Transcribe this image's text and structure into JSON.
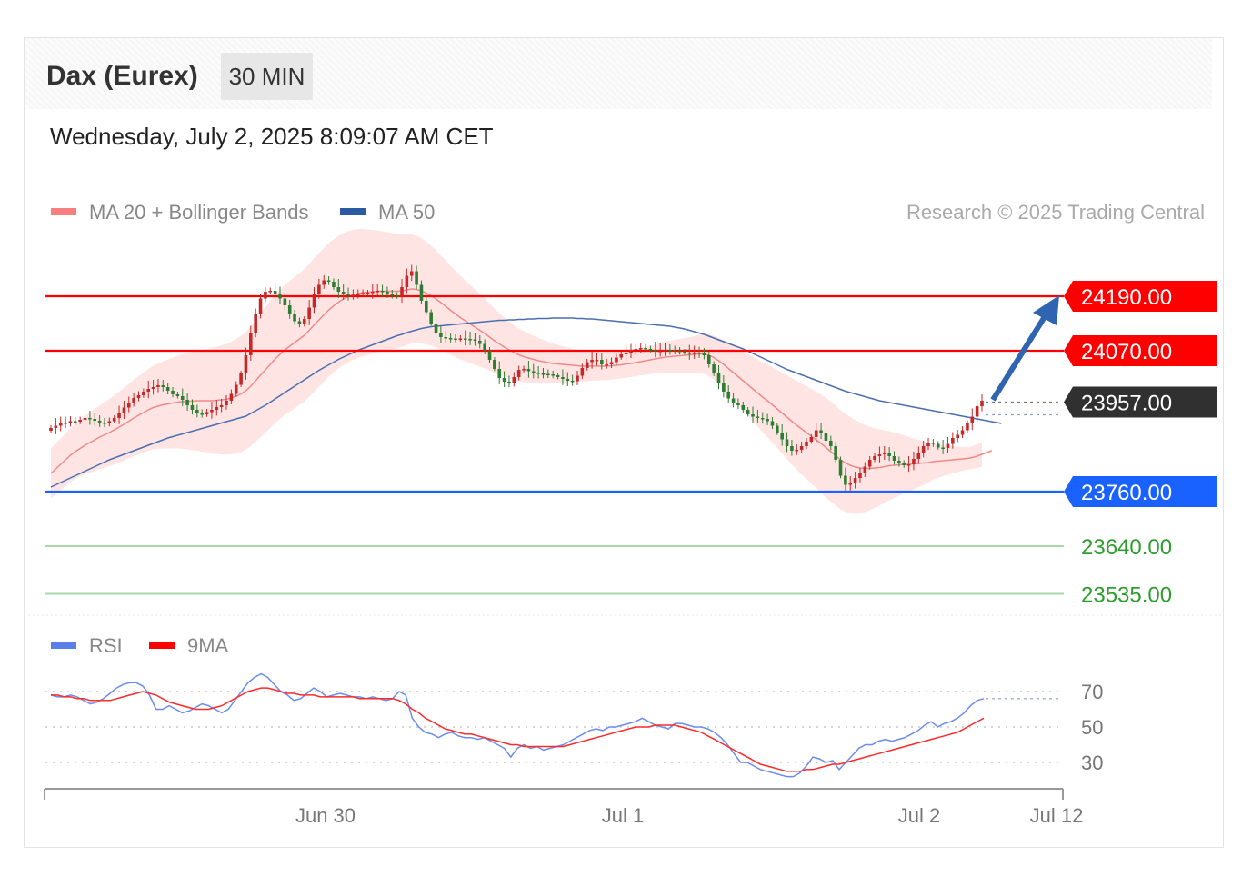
{
  "header": {
    "instrument": "Dax (Eurex)",
    "interval": "30 MIN",
    "timestamp": "Wednesday, July 2, 2025 8:09:07 AM CET"
  },
  "copyright": "Research © 2025 Trading Central",
  "colors": {
    "resistance": "#ff0000",
    "support": "#1a62ff",
    "pivot": "#303030",
    "target": "#a9d8a9",
    "target_text": "#2e9e2e",
    "bull_candle": "#c62828",
    "bear_candle": "#2e7d32",
    "bollinger_fill": "#ffe1e1",
    "ma20": "#f08a8a",
    "ma50": "#4a6fb0",
    "rsi": "#6a8cf0",
    "rsi_ma": "#ff2a2a",
    "arrow": "#2f64b0"
  },
  "chart_data": [
    {
      "type": "candlestick",
      "legend": [
        {
          "name": "MA 20 + Bollinger Bands",
          "color": "#f77f7f"
        },
        {
          "name": "MA 50",
          "color": "#2c5aa0"
        }
      ],
      "levels": [
        {
          "label": "24190.00",
          "value": 24190,
          "kind": "resistance"
        },
        {
          "label": "24070.00",
          "value": 24070,
          "kind": "resistance"
        },
        {
          "label": "23957.00",
          "value": 23957,
          "kind": "last"
        },
        {
          "label": "23760.00",
          "value": 23760,
          "kind": "support"
        },
        {
          "label": "23640.00",
          "value": 23640,
          "kind": "target"
        },
        {
          "label": "23535.00",
          "value": 23535,
          "kind": "target"
        }
      ],
      "x_ticks": [
        "Jun 30",
        "Jul 1",
        "Jul 2",
        "Jul 12"
      ],
      "close": [
        23900,
        23905,
        23910,
        23912,
        23915,
        23914,
        23918,
        23922,
        23920,
        23916,
        23912,
        23910,
        23915,
        23922,
        23932,
        23945,
        23956,
        23966,
        23972,
        23980,
        23986,
        23990,
        23994,
        23990,
        23982,
        23974,
        23970,
        23962,
        23950,
        23940,
        23932,
        23930,
        23935,
        23940,
        23946,
        23950,
        23960,
        23975,
        23995,
        24020,
        24060,
        24110,
        24150,
        24185,
        24200,
        24202,
        24195,
        24185,
        24170,
        24150,
        24135,
        24128,
        24140,
        24165,
        24195,
        24215,
        24225,
        24222,
        24210,
        24200,
        24195,
        24192,
        24193,
        24195,
        24197,
        24198,
        24200,
        24202,
        24200,
        24195,
        24192,
        24190,
        24210,
        24235,
        24245,
        24215,
        24180,
        24155,
        24130,
        24110,
        24100,
        24098,
        24097,
        24096,
        24097,
        24096,
        24095,
        24092,
        24085,
        24070,
        24050,
        24030,
        24010,
        24002,
        24000,
        24012,
        24028,
        24030,
        24025,
        24022,
        24020,
        24019,
        24018,
        24016,
        24012,
        24008,
        24004,
        24003,
        24015,
        24032,
        24045,
        24050,
        24050,
        24040,
        24040,
        24045,
        24055,
        24062,
        24066,
        24070,
        24074,
        24076,
        24074,
        24072,
        24070,
        24070,
        24072,
        24071,
        24070,
        24068,
        24066,
        24064,
        24066,
        24065,
        24060,
        24040,
        24020,
        24000,
        23980,
        23965,
        23955,
        23950,
        23940,
        23930,
        23925,
        23922,
        23920,
        23915,
        23905,
        23890,
        23875,
        23860,
        23850,
        23852,
        23860,
        23870,
        23880,
        23895,
        23888,
        23872,
        23860,
        23830,
        23795,
        23775,
        23778,
        23790,
        23800,
        23815,
        23830,
        23838,
        23842,
        23845,
        23838,
        23828,
        23822,
        23818,
        23820,
        23832,
        23845,
        23860,
        23868,
        23865,
        23857,
        23856,
        23865,
        23878,
        23885,
        23895,
        23910,
        23925,
        23948,
        23960
      ],
      "ma20": [
        23800,
        23810,
        23820,
        23830,
        23840,
        23848,
        23855,
        23862,
        23868,
        23874,
        23880,
        23885,
        23890,
        23896,
        23902,
        23908,
        23915,
        23922,
        23928,
        23934,
        23940,
        23945,
        23948,
        23951,
        23953,
        23955,
        23957,
        23958,
        23959,
        23959,
        23960,
        23960,
        23960,
        23960,
        23961,
        23962,
        23963,
        23966,
        23970,
        23975,
        23982,
        23992,
        24004,
        24016,
        24028,
        24040,
        24052,
        24062,
        24072,
        24080,
        24088,
        24096,
        24104,
        24115,
        24127,
        24138,
        24149,
        24160,
        24169,
        24177,
        24184,
        24189,
        24193,
        24196,
        24198,
        24199,
        24200,
        24201,
        24201,
        24201,
        24201,
        24201,
        24202,
        24204,
        24206,
        24205,
        24202,
        24197,
        24191,
        24184,
        24176,
        24168,
        24159,
        24151,
        24143,
        24136,
        24129,
        24122,
        24115,
        24108,
        24100,
        24092,
        24085,
        24078,
        24072,
        24066,
        24061,
        24057,
        24054,
        24051,
        24048,
        24046,
        24044,
        24042,
        24041,
        24040,
        24039,
        24038,
        24037,
        24036,
        24036,
        24036,
        24036,
        24036,
        24036,
        24037,
        24038,
        24039,
        24041,
        24042,
        24044,
        24046,
        24048,
        24050,
        24052,
        24054,
        24056,
        24057,
        24058,
        24059,
        24060,
        24061,
        24062,
        24063,
        24063,
        24060,
        24055,
        24048,
        24040,
        24031,
        24022,
        24013,
        24004,
        23995,
        23986,
        23977,
        23968,
        23960,
        23951,
        23942,
        23933,
        23924,
        23915,
        23906,
        23898,
        23890,
        23882,
        23874,
        23866,
        23857,
        23848,
        23839,
        23830,
        23823,
        23818,
        23814,
        23812,
        23811,
        23811,
        23812,
        23813,
        23815,
        23817,
        23818,
        23819,
        23820,
        23820,
        23821,
        23822,
        23823,
        23824,
        23826,
        23827,
        23828,
        23829,
        23830,
        23831,
        23832,
        23833,
        23835,
        23838,
        23842,
        23846,
        23850
      ],
      "bb_width": [
        55,
        56,
        57,
        58,
        59,
        60,
        62,
        64,
        66,
        68,
        70,
        72,
        74,
        76,
        78,
        80,
        82,
        84,
        86,
        88,
        90,
        92,
        94,
        96,
        98,
        100,
        102,
        104,
        106,
        108,
        110,
        112,
        114,
        116,
        118,
        120,
        122,
        124,
        126,
        128,
        130,
        132,
        134,
        136,
        138,
        140,
        141,
        142,
        143,
        144,
        145,
        145,
        146,
        146,
        147,
        147,
        147,
        147,
        146,
        146,
        145,
        144,
        143,
        142,
        140,
        138,
        136,
        134,
        132,
        130,
        128,
        126,
        124,
        122,
        120,
        118,
        116,
        113,
        110,
        107,
        104,
        101,
        98,
        95,
        92,
        89,
        86,
        83,
        80,
        77,
        74,
        71,
        68,
        65,
        62,
        60,
        58,
        56,
        54,
        52,
        50,
        48,
        46,
        44,
        42,
        40,
        38,
        36,
        35,
        34,
        33,
        32,
        32,
        31,
        31,
        30,
        30,
        30,
        30,
        30,
        30,
        30,
        31,
        31,
        32,
        33,
        34,
        35,
        36,
        37,
        38,
        39,
        40,
        42,
        44,
        46,
        48,
        50,
        53,
        56,
        59,
        62,
        65,
        68,
        71,
        74,
        77,
        80,
        83,
        86,
        89,
        92,
        95,
        98,
        100,
        102,
        104,
        106,
        108,
        110,
        110,
        110,
        109,
        108,
        106,
        103,
        100,
        96,
        92,
        88,
        84,
        80,
        76,
        72,
        68,
        64,
        60,
        56,
        52,
        48,
        44,
        40,
        37,
        34,
        32,
        30,
        28,
        26,
        25,
        25,
        26,
        27,
        28,
        30,
        32,
        34,
        36,
        38
      ],
      "ma50": [
        23770,
        23775,
        23780,
        23785,
        23790,
        23795,
        23800,
        23805,
        23810,
        23815,
        23820,
        23825,
        23830,
        23834,
        23838,
        23842,
        23846,
        23850,
        23854,
        23858,
        23862,
        23866,
        23870,
        23874,
        23878,
        23881,
        23884,
        23887,
        23890,
        23893,
        23896,
        23899,
        23902,
        23905,
        23908,
        23911,
        23914,
        23917,
        23920,
        23923,
        23926,
        23932,
        23938,
        23944,
        23950,
        23957,
        23964,
        23971,
        23978,
        23985,
        23992,
        23999,
        24006,
        24013,
        24020,
        24027,
        24033,
        24039,
        24045,
        24051,
        24056,
        24061,
        24066,
        24071,
        24075,
        24079,
        24083,
        24087,
        24091,
        24095,
        24099,
        24103,
        24106,
        24110,
        24113,
        24116,
        24119,
        24121,
        24123,
        24124,
        24125,
        24126,
        24127,
        24128,
        24129,
        24130,
        24131,
        24132,
        24133,
        24134,
        24135,
        24136,
        24137,
        24137,
        24138,
        24138,
        24139,
        24139,
        24140,
        24140,
        24141,
        24141,
        24141,
        24142,
        24142,
        24142,
        24142,
        24142,
        24141,
        24141,
        24140,
        24140,
        24139,
        24138,
        24137,
        24136,
        24135,
        24134,
        24133,
        24132,
        24131,
        24130,
        24129,
        24128,
        24127,
        24126,
        24125,
        24124,
        24122,
        24120,
        24118,
        24115,
        24112,
        24109,
        24106,
        24102,
        24098,
        24094,
        24090,
        24086,
        24082,
        24078,
        24074,
        24069,
        24064,
        24059,
        24054,
        24049,
        24044,
        24039,
        24034,
        24029,
        24025,
        24021,
        24017,
        24013,
        24009,
        24005,
        24001,
        23997,
        23993,
        23989,
        23985,
        23981,
        23978,
        23975,
        23972,
        23969,
        23966,
        23963,
        23960,
        23958,
        23956,
        23954,
        23952,
        23950,
        23948,
        23946,
        23944,
        23942,
        23940,
        23938,
        23936,
        23934,
        23932,
        23930,
        23928,
        23926,
        23924,
        23922,
        23920,
        23918,
        23916,
        23914,
        23912,
        23910
      ]
    },
    {
      "type": "line",
      "legend": [
        {
          "name": "RSI",
          "color": "#5b7fe6"
        },
        {
          "name": "9MA",
          "color": "#ff0000"
        }
      ],
      "y_ticks": [
        "70",
        "50",
        "30"
      ],
      "ylim": [
        20,
        85
      ],
      "rsi": [
        68,
        67,
        67,
        68,
        67,
        65,
        63,
        64,
        66,
        69,
        72,
        74,
        75,
        75,
        73,
        68,
        60,
        60,
        62,
        60,
        58,
        59,
        61,
        63,
        62,
        60,
        58,
        60,
        65,
        70,
        75,
        78,
        80,
        78,
        74,
        70,
        68,
        65,
        66,
        69,
        72,
        70,
        67,
        68,
        69,
        68,
        67,
        67,
        66,
        67,
        66,
        65,
        66,
        70,
        68,
        55,
        50,
        47,
        46,
        44,
        46,
        47,
        45,
        44,
        44,
        43,
        44,
        42,
        40,
        38,
        33,
        38,
        40,
        38,
        39,
        37,
        38,
        39,
        40,
        42,
        44,
        46,
        48,
        49,
        48,
        50,
        50,
        51,
        52,
        53,
        55,
        53,
        51,
        50,
        49,
        52,
        52,
        51,
        50,
        50,
        49,
        47,
        44,
        40,
        35,
        30,
        30,
        28,
        26,
        25,
        24,
        23,
        22,
        22,
        24,
        28,
        33,
        32,
        30,
        31,
        26,
        30,
        34,
        38,
        40,
        40,
        42,
        43,
        42,
        43,
        44,
        46,
        48,
        51,
        53,
        50,
        52,
        53,
        55,
        58,
        62,
        65,
        66
      ],
      "ma9": [
        68,
        68,
        67,
        67,
        66,
        66,
        65,
        65,
        65,
        65,
        66,
        67,
        68,
        69,
        70,
        69,
        68,
        66,
        64,
        63,
        62,
        61,
        60,
        60,
        60,
        61,
        62,
        64,
        66,
        68,
        70,
        71,
        72,
        72,
        71,
        70,
        69,
        69,
        68,
        68,
        68,
        67,
        67,
        67,
        67,
        67,
        67,
        66,
        66,
        66,
        66,
        66,
        66,
        65,
        63,
        60,
        58,
        55,
        53,
        51,
        49,
        48,
        47,
        46,
        46,
        45,
        44,
        43,
        42,
        41,
        40,
        40,
        39,
        39,
        39,
        39,
        39,
        39,
        39,
        40,
        41,
        42,
        43,
        44,
        45,
        46,
        47,
        48,
        49,
        50,
        50,
        50,
        51,
        51,
        51,
        51,
        50,
        49,
        48,
        47,
        45,
        43,
        41,
        39,
        37,
        35,
        33,
        31,
        29,
        28,
        27,
        26,
        25,
        25,
        25,
        26,
        26,
        27,
        28,
        29,
        29,
        30,
        31,
        32,
        33,
        34,
        35,
        36,
        37,
        38,
        39,
        40,
        41,
        42,
        43,
        44,
        45,
        46,
        47,
        49,
        51,
        53,
        55
      ]
    }
  ]
}
